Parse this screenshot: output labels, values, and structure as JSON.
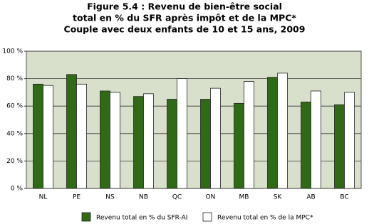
{
  "chart_data": {
    "type": "bar",
    "title": [
      "Figure 5.4 : Revenu de bien-être social",
      "total en % du SFR après impôt et de la MPC*",
      "Couple avec deux enfants de 10 et 15 ans, 2009"
    ],
    "categories": [
      "NL",
      "PE",
      "NS",
      "NB",
      "QC",
      "ON",
      "MB",
      "SK",
      "AB",
      "BC"
    ],
    "series": [
      {
        "name": "Revenu total en % du SFR-AI",
        "color": "#2e6b14",
        "values": [
          76,
          83,
          71,
          67,
          65,
          65,
          62,
          81,
          63,
          61
        ]
      },
      {
        "name": "Revenu total en % de la MPC*",
        "color": "#ffffff",
        "values": [
          75,
          76,
          70,
          69,
          80,
          73,
          78,
          84,
          71,
          70
        ]
      }
    ],
    "ylim": [
      0,
      100
    ],
    "yticks": [
      {
        "value": 0,
        "label": "0 %"
      },
      {
        "value": 20,
        "label": "20 %"
      },
      {
        "value": 40,
        "label": "40 %"
      },
      {
        "value": 60,
        "label": "60 %"
      },
      {
        "value": 80,
        "label": "80 %"
      },
      {
        "value": 100,
        "label": "100 %"
      }
    ],
    "grid": true
  }
}
